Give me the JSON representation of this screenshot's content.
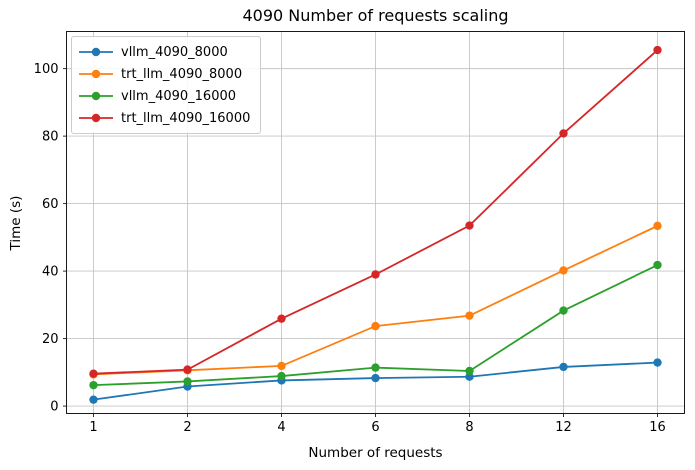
{
  "chart_data": {
    "type": "line",
    "title": "4090 Number of requests scaling",
    "xlabel": "Number of requests",
    "ylabel": "Time (s)",
    "categories": [
      "1",
      "2",
      "4",
      "6",
      "8",
      "12",
      "16"
    ],
    "yticks": [
      0,
      20,
      40,
      60,
      80,
      100
    ],
    "ylim": [
      -2.2,
      111.0
    ],
    "grid": true,
    "legend_position": "upper left",
    "marker": "circle",
    "series": [
      {
        "name": "vllm_4090_8000",
        "color": "#1f77b4",
        "values": [
          1.9,
          5.8,
          7.6,
          8.3,
          8.7,
          11.6,
          12.9
        ]
      },
      {
        "name": "trt_llm_4090_8000",
        "color": "#ff7f0e",
        "values": [
          9.4,
          10.6,
          11.9,
          23.7,
          26.8,
          40.2,
          53.4
        ]
      },
      {
        "name": "vllm_4090_16000",
        "color": "#2ca02c",
        "values": [
          6.2,
          7.3,
          8.9,
          11.4,
          10.4,
          28.3,
          41.8
        ]
      },
      {
        "name": "trt_llm_4090_16000",
        "color": "#d62728",
        "values": [
          9.6,
          10.8,
          25.9,
          39.0,
          53.5,
          80.8,
          105.5
        ]
      }
    ]
  }
}
